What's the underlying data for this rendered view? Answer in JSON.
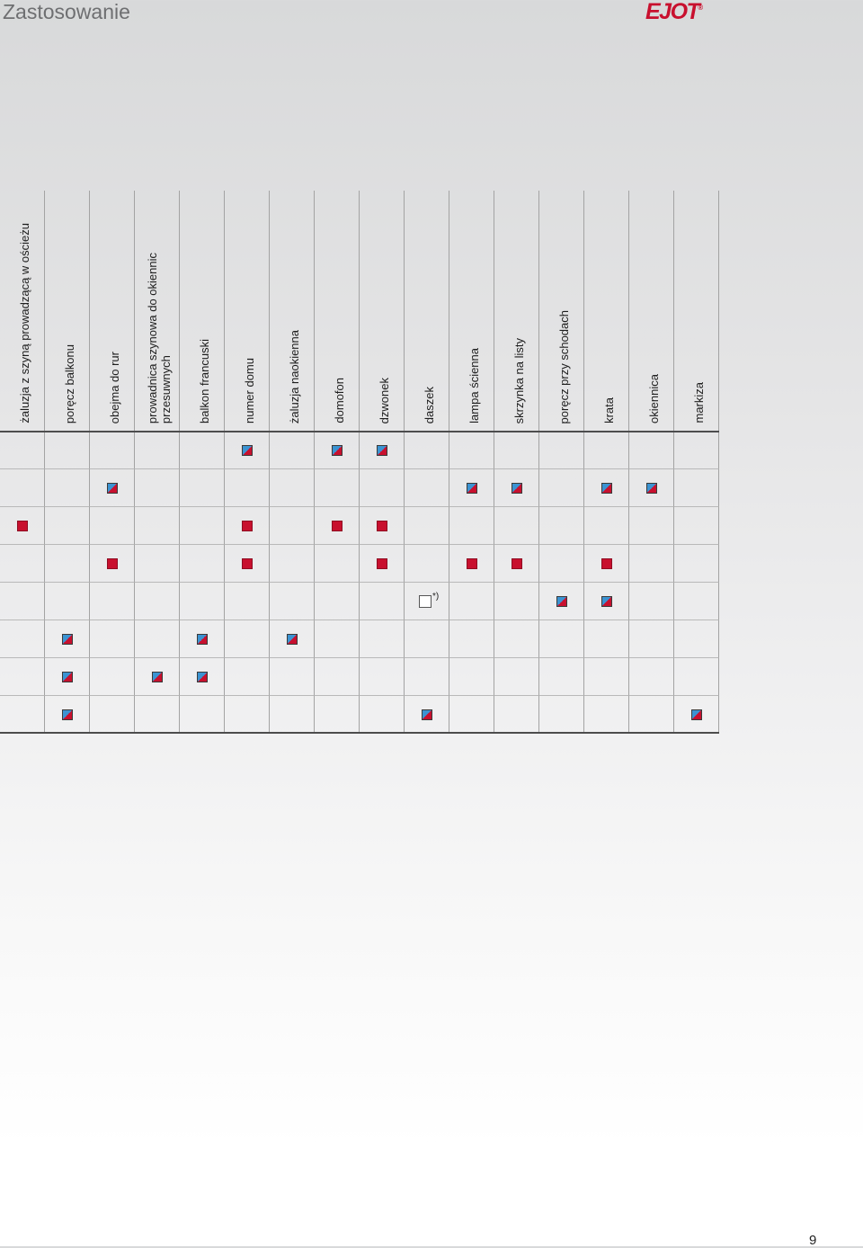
{
  "header": {
    "title": "Zastosowanie"
  },
  "logo": {
    "text": "EJOT",
    "mark": "®"
  },
  "colors": {
    "brand_red": "#c8102e",
    "marker_red": "#c8102e",
    "marker_blue": "#3b93d2",
    "title_gray": "#6e6f71"
  },
  "table": {
    "columns": [
      "żaluzja z szyną prowadzącą w ościeżu",
      "poręcz balkonu",
      "obejma do rur",
      "prowadnica szynowa do okiennic\nprzesuwnych",
      "balkon francuski",
      "numer domu",
      "żaluzja naokienna",
      "domofon",
      "dzwonek",
      "daszek",
      "lampa ścienna",
      "skrzynka na listy",
      "poręcz przy schodach",
      "krata",
      "okiennica",
      "markiza"
    ],
    "rows": [
      {
        "cells": [
          "",
          "",
          "",
          "",
          "",
          "split-square-icon",
          "",
          "split-square-icon",
          "split-square-icon",
          "",
          "",
          "",
          "",
          "",
          "",
          ""
        ]
      },
      {
        "cells": [
          "",
          "",
          "split-square-icon",
          "",
          "",
          "",
          "",
          "",
          "",
          "",
          "split-square-icon",
          "split-square-icon",
          "",
          "split-square-icon",
          "split-square-icon",
          ""
        ]
      },
      {
        "cells": [
          "red-square-icon",
          "",
          "",
          "",
          "",
          "red-square-icon",
          "",
          "red-square-icon",
          "red-square-icon",
          "",
          "",
          "",
          "",
          "",
          "",
          ""
        ]
      },
      {
        "cells": [
          "",
          "",
          "red-square-icon",
          "",
          "",
          "red-square-icon",
          "",
          "",
          "red-square-icon",
          "",
          "red-square-icon",
          "red-square-icon",
          "",
          "red-square-icon",
          "",
          ""
        ]
      },
      {
        "cells": [
          "",
          "",
          "",
          "",
          "",
          "",
          "",
          "",
          "",
          {
            "icon": "empty-square-icon",
            "note": "*)"
          },
          "",
          "",
          "split-square-icon",
          "split-square-icon",
          "",
          ""
        ]
      },
      {
        "cells": [
          "",
          "split-square-icon",
          "",
          "",
          "split-square-icon",
          "",
          "split-square-icon",
          "",
          "",
          "",
          "",
          "",
          "",
          "",
          "",
          ""
        ]
      },
      {
        "cells": [
          "",
          "split-square-icon",
          "",
          "split-square-icon",
          "split-square-icon",
          "",
          "",
          "",
          "",
          "",
          "",
          "",
          "",
          "",
          "",
          ""
        ]
      },
      {
        "cells": [
          "",
          "split-square-icon",
          "",
          "",
          "",
          "",
          "",
          "",
          "",
          "split-square-icon",
          "",
          "",
          "",
          "",
          "",
          "split-square-icon"
        ]
      }
    ]
  },
  "footer": {
    "page_number": "9"
  }
}
